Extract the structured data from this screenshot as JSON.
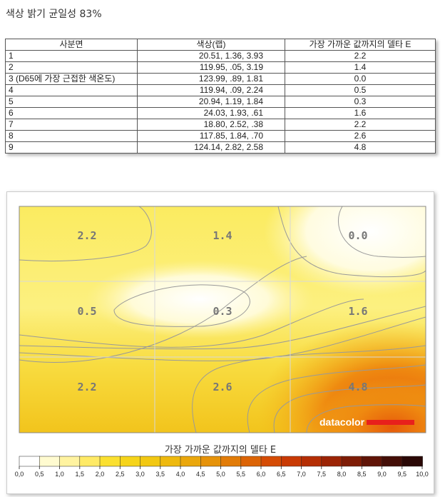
{
  "title": "색상 밝기 균일성 83%",
  "table": {
    "headers": [
      "사분면",
      "색상(랩)",
      "가장 가까운 값까지의 델타 E"
    ],
    "rows": [
      {
        "q": "1",
        "lab": "20.51,   1.36,   3.93",
        "de": "2.2"
      },
      {
        "q": "2",
        "lab": "119.95,    .05,   3.19",
        "de": "1.4"
      },
      {
        "q": "3 (D65에 가장 근접한 색온도)",
        "lab": "123.99,    .89,   1.81",
        "de": "0.0"
      },
      {
        "q": "4",
        "lab": "119.94,    .09,   2.24",
        "de": "0.5"
      },
      {
        "q": "5",
        "lab": "20.94,   1.19,   1.84",
        "de": "0.3"
      },
      {
        "q": "6",
        "lab": "24.03,   1.93,    .61",
        "de": "1.6"
      },
      {
        "q": "7",
        "lab": "18.80,   2.52,    .38",
        "de": "2.2"
      },
      {
        "q": "8",
        "lab": "117.85,   1.84,     .70",
        "de": "2.6"
      },
      {
        "q": "9",
        "lab": "124.14,   2.82,   2.58",
        "de": "4.8"
      }
    ]
  },
  "chart_data": {
    "type": "heatmap",
    "grid": "3x3",
    "cells": [
      [
        "2.2",
        "1.4",
        "0.0"
      ],
      [
        "0.5",
        "0.3",
        "1.6"
      ],
      [
        "2.2",
        "2.6",
        "4.8"
      ]
    ],
    "values": [
      [
        2.2,
        1.4,
        0.0
      ],
      [
        0.5,
        0.3,
        1.6
      ],
      [
        2.2,
        2.6,
        4.8
      ]
    ],
    "legend_title": "가장 가까운 값까지의 델타 E",
    "legend_ticks": [
      "0,0",
      "0,5",
      "1,0",
      "1,5",
      "2,0",
      "2,5",
      "3,0",
      "3,5",
      "4,0",
      "4,5",
      "5,0",
      "5,5",
      "6,0",
      "6,5",
      "7,0",
      "7,5",
      "8,0",
      "8,5",
      "9,0",
      "9,5",
      "10,0"
    ],
    "scale_range": [
      0,
      10
    ],
    "logo": "datacolor"
  },
  "colors": {
    "scale": [
      "#ffffff",
      "#fffbd0",
      "#fff3a0",
      "#ffea66",
      "#fbe030",
      "#f6d41a",
      "#f2c812",
      "#eeb90e",
      "#eaa70c",
      "#e6930a",
      "#e27c08",
      "#dc6406",
      "#d54c05",
      "#c93a04",
      "#b52e04",
      "#9c2405",
      "#7e1c06",
      "#601407",
      "#440e07",
      "#2a0806",
      "#000000"
    ],
    "logo_bar": "#e8201c"
  }
}
